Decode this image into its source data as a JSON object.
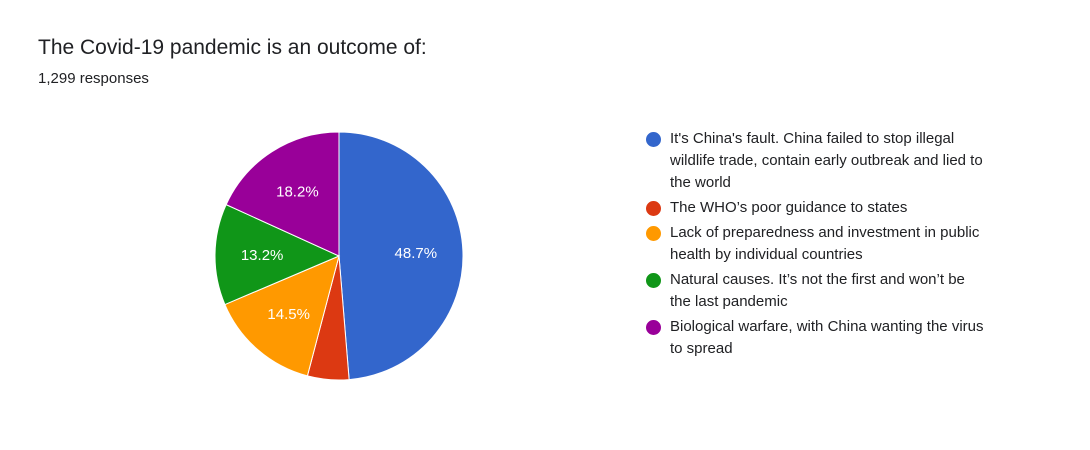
{
  "header": {
    "title": "The Covid-19 pandemic is an outcome of:",
    "responses": "1,299 responses"
  },
  "chart_data": {
    "type": "pie",
    "labels": [
      "It's China's fault. China failed to stop illegal wildlife trade, contain early outbreak and lied to the world",
      "The WHO’s poor guidance to states",
      "Lack of preparedness and investment in public health by individual countries",
      "Natural causes. It’s not the first and won’t be the last pandemic",
      "Biological warfare, with China wanting the virus to spread"
    ],
    "values": [
      48.7,
      5.4,
      14.5,
      13.2,
      18.2
    ],
    "data_labels": [
      "48.7%",
      "",
      "14.5%",
      "13.2%",
      "18.2%"
    ],
    "colors": [
      "#3366cc",
      "#dc3912",
      "#ff9900",
      "#109618",
      "#990099"
    ],
    "legend_position": "right",
    "start_angle_deg": 90,
    "direction": "clockwise"
  }
}
